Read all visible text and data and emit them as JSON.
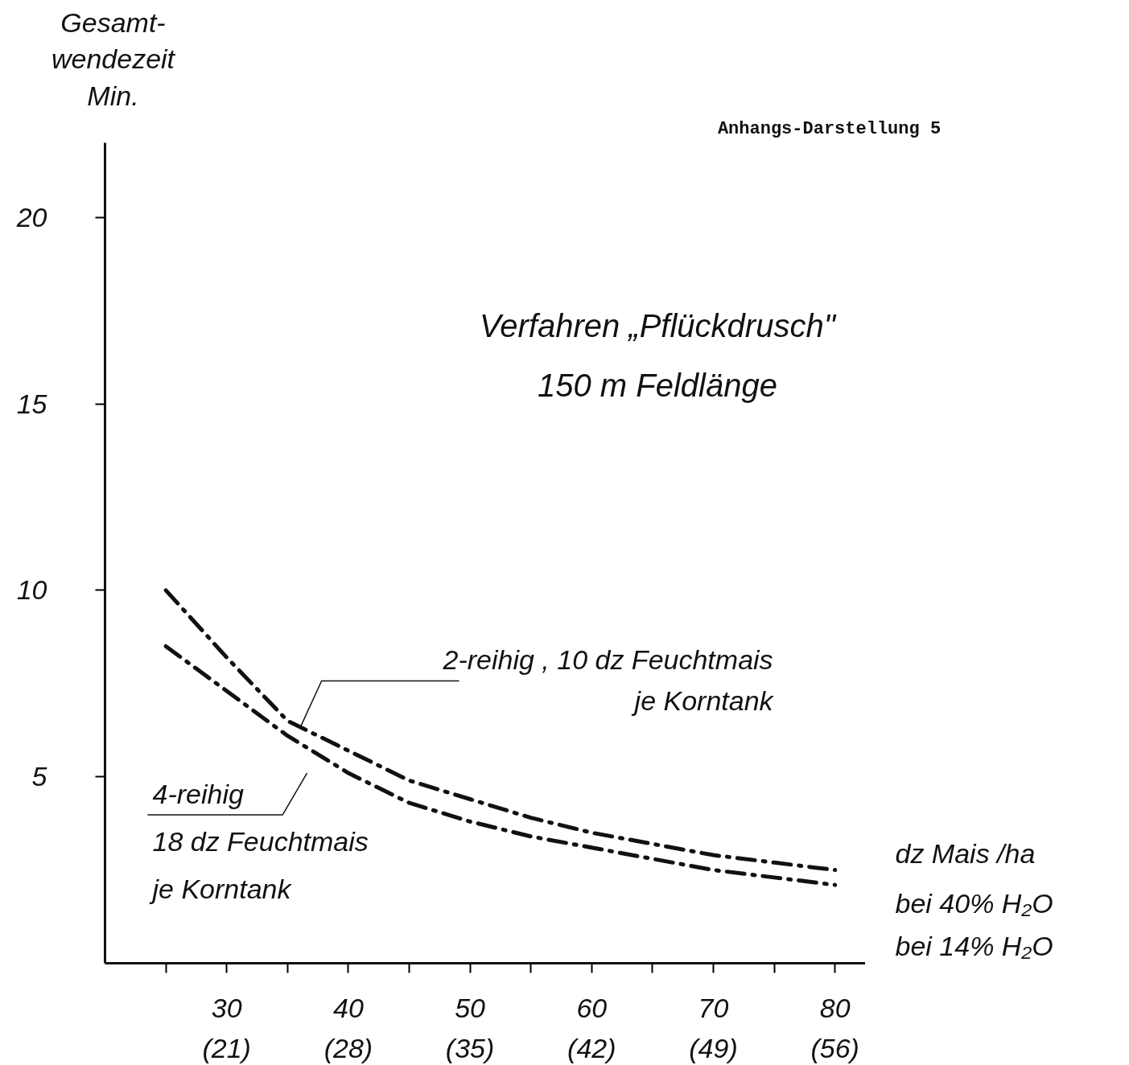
{
  "chart_data": {
    "type": "line",
    "title": "Verfahren „Pflückdrusch\"",
    "subtitle": "150 m Feldlänge",
    "ylabel": "Gesamt-\nwendezeit\nMin.",
    "xlabel": "dz Mais /ha",
    "x2label": "bei 14% H₂O",
    "annotations": [
      "Anhangs-Darstellung 5",
      "bei 40% H₂O"
    ],
    "x": [
      25,
      30,
      35,
      40,
      45,
      50,
      55,
      60,
      65,
      70,
      75,
      80
    ],
    "series": [
      {
        "name": "2-reihig , 10 dz Feuchtmais\nje Korntank",
        "color": "#111111",
        "values": [
          10.0,
          8.2,
          6.5,
          5.7,
          4.9,
          4.4,
          3.9,
          3.5,
          3.2,
          2.9,
          2.7,
          2.5
        ]
      },
      {
        "name": "4-reihig\n18 dz Feuchtmais\nje Korntank",
        "color": "#111111",
        "values": [
          8.5,
          7.3,
          6.1,
          5.1,
          4.3,
          3.8,
          3.4,
          3.1,
          2.8,
          2.5,
          2.3,
          2.1
        ]
      }
    ],
    "line_style": "dashed",
    "xlim": [
      20,
      82.5
    ],
    "ylim": [
      0,
      22
    ],
    "xticks": [
      {
        "value": 25,
        "label": null
      },
      30,
      {
        "value": 35,
        "label": null
      },
      40,
      {
        "value": 45,
        "label": null
      },
      50,
      {
        "value": 55,
        "label": null
      },
      60,
      {
        "value": 65,
        "label": null
      },
      70,
      {
        "value": 75,
        "label": null
      },
      80
    ],
    "x2lim": [
      14,
      57.75
    ],
    "x2ticks": [
      {
        "value": 21,
        "label": "(21)"
      },
      {
        "value": 28,
        "label": "(28)"
      },
      {
        "value": 35,
        "label": "(35)"
      },
      {
        "value": 42,
        "label": "(42)"
      },
      {
        "value": 49,
        "label": "(49)"
      },
      {
        "value": 56,
        "label": "(56)"
      }
    ],
    "yticks": [
      5,
      10,
      15,
      20
    ],
    "grid": false
  }
}
